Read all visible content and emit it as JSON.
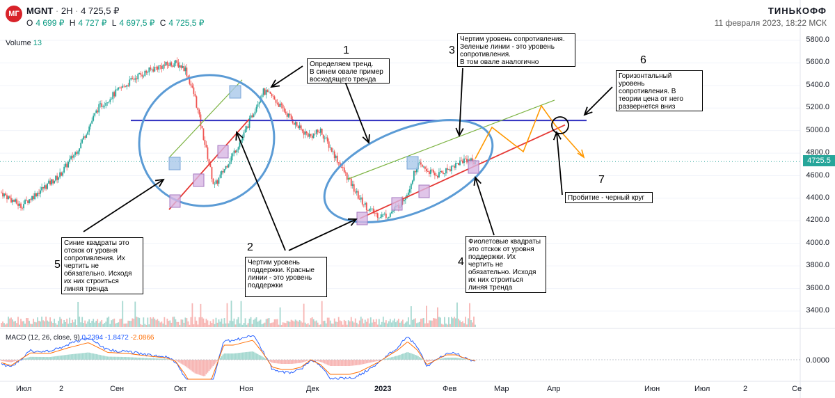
{
  "header": {
    "logo_text": "MГ",
    "symbol": "MGNT",
    "interval": "2H",
    "last_price": "4 725,5 ₽",
    "ohlc": {
      "o_label": "O",
      "o": "4 699 ₽",
      "h_label": "H",
      "h": "4 727 ₽",
      "l_label": "L",
      "l": "4 697,5 ₽",
      "c_label": "C",
      "c": "4 725,5 ₽"
    },
    "volume_label": "Volume",
    "volume_value": "13",
    "brand": "ТИНЬКОФФ",
    "datetime": "11 февраля 2023, 18:22 МСК"
  },
  "macd": {
    "label": "MACD (12, 26, close, 9)",
    "v1": "0.2394",
    "v2": "-1.8472",
    "v3": "-2.0866",
    "zero_label": "0.0000"
  },
  "colors": {
    "up": "#26a69a",
    "down": "#ef5350",
    "support": "#e53935",
    "resistance": "#7cb342",
    "horizontal": "#3030c0",
    "oval": "#5b9bd5",
    "projection": "#ff9800"
  },
  "annotations": {
    "n1": "1",
    "t1": "Определяем тренд.\nВ синем овале пример\nвосходящего тренда",
    "n2": "2",
    "t2": "Чертим уровень\nподдержки. Красные\nлинии - это уровень\nподдержки",
    "n3": "3",
    "t3": "Чертим уровень сопротивления.\nЗеленые линии - это уровень\nсопротивления.\nВ том овале аналогично",
    "n4": "4",
    "t4": "Фиолетовые квадраты\nэто отскок от уровня\nподдержки. Их\nчертить не\nобязательно. Исходя\nих них строиться\nлиняя тренда",
    "n5": "5",
    "t5": "Синие квадраты это\nотскок от уровня\nсопротивления. Их\nчертить не\nобязательно. Исходя\nих них строиться\nлиняя тренда",
    "n6": "6",
    "t6": "Горизонтальный\nуровень\nсопротивления. В\nтеории цена от него\nразвернется вниз",
    "n7": "7",
    "t7": "Пробитие - черный круг"
  },
  "chart_data": {
    "type": "candlestick",
    "x_axis_labels": [
      "Июл",
      "2",
      "Сен",
      "Окт",
      "Ноя",
      "Дек",
      "2023",
      "Фев",
      "Мар",
      "Апр",
      "Июн",
      "Июл",
      "2",
      "Се"
    ],
    "y_axis_ticks": [
      5800,
      5600,
      5400,
      5200,
      5000,
      4800,
      4600,
      4400,
      4200,
      4000,
      3800,
      3600,
      3400
    ],
    "y_tick_labels": [
      "5800.0",
      "5600.0",
      "5400.0",
      "5200.0",
      "5000.0",
      "4800.0",
      "4600.0",
      "4400.0",
      "4200.0",
      "4000.0",
      "3800.0",
      "3600.0",
      "3400.0"
    ],
    "last_price_label": "4725.5",
    "ylim": [
      3200,
      5900
    ],
    "price_path": [
      [
        0,
        4450
      ],
      [
        2,
        4330
      ],
      [
        4,
        4470
      ],
      [
        6,
        4600
      ],
      [
        8,
        4850
      ],
      [
        10,
        5200
      ],
      [
        12,
        5350
      ],
      [
        14,
        5480
      ],
      [
        16,
        5560
      ],
      [
        18,
        5600
      ],
      [
        19,
        5550
      ],
      [
        20,
        5300
      ],
      [
        21,
        4900
      ],
      [
        22,
        4500
      ],
      [
        23,
        4650
      ],
      [
        24,
        4800
      ],
      [
        25,
        4950
      ],
      [
        26,
        5150
      ],
      [
        27,
        5350
      ],
      [
        28,
        5300
      ],
      [
        29,
        5200
      ],
      [
        30,
        5100
      ],
      [
        31,
        5000
      ],
      [
        32,
        4950
      ],
      [
        33,
        5000
      ],
      [
        34,
        4850
      ],
      [
        35,
        4700
      ],
      [
        36,
        4550
      ],
      [
        37,
        4400
      ],
      [
        38,
        4300
      ],
      [
        39,
        4250
      ],
      [
        40,
        4250
      ],
      [
        41,
        4330
      ],
      [
        42,
        4450
      ],
      [
        43,
        4700
      ],
      [
        44,
        4650
      ],
      [
        45,
        4600
      ],
      [
        46,
        4650
      ],
      [
        47,
        4700
      ],
      [
        48,
        4750
      ],
      [
        49,
        4725
      ]
    ],
    "horizontal_level": 5090,
    "support_lines": [
      {
        "from": [
          "Сен-Окт",
          4300
        ],
        "to": [
          "Ноя",
          5100
        ]
      },
      {
        "from": [
          "Дек",
          4220
        ],
        "to": [
          "Апр",
          5050
        ]
      }
    ],
    "resistance_lines": [
      {
        "from": [
          "Окт",
          4760
        ],
        "to": [
          "Ноя",
          5450
        ]
      },
      {
        "from": [
          "Дек",
          4570
        ],
        "to": [
          "Апр",
          5270
        ]
      }
    ],
    "projection_points": [
      [
        4700,
        5050
      ],
      [
        4920,
        5220
      ],
      [
        5000,
        4820
      ]
    ]
  }
}
